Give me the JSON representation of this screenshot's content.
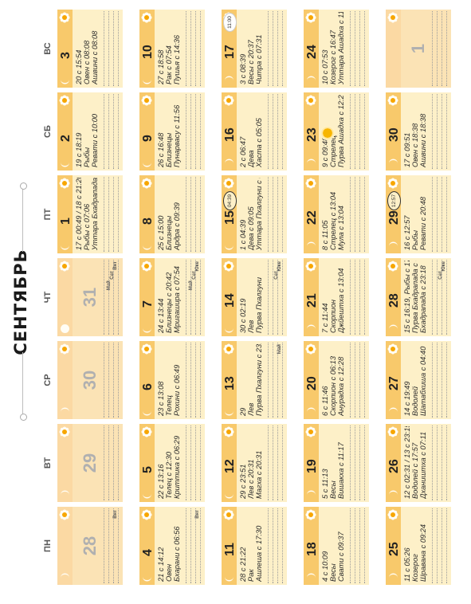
{
  "title": "СЕНТЯБРЬ",
  "weekdays": [
    "ПН",
    "ВТ",
    "СР",
    "ЧТ",
    "ПТ",
    "СБ",
    "ВС"
  ],
  "colors": {
    "bar": "#f8c96b",
    "cell": "#fdf0c8",
    "dim": "#fbe3b5",
    "sun": "#f7a600"
  },
  "weeks": [
    [
      {
        "day": "28",
        "dim": true,
        "moon": "waning",
        "info": [
          "",
          "",
          ""
        ],
        "badges": [
          "Вят"
        ]
      },
      {
        "day": "29",
        "dim": true,
        "moon": "waning",
        "info": [
          "",
          "",
          ""
        ]
      },
      {
        "day": "30",
        "dim": true,
        "moon": "waning",
        "info": [
          "",
          "",
          ""
        ]
      },
      {
        "day": "31",
        "dim": true,
        "moon": "new",
        "info": [
          "",
          "",
          ""
        ],
        "badges": [
          "Вят",
          "Сат",
          "Май"
        ]
      },
      {
        "day": "1",
        "moon": "waxing",
        "info": [
          "17 с 00:49 / 18 с 21:20",
          "Рыбы с 07:06",
          "Уттара Бхадрапада с 12:25"
        ]
      },
      {
        "day": "2",
        "moon": "waxing",
        "info": [
          "19 с 18:19",
          "Рыбы",
          "Ревати с 10:00"
        ]
      },
      {
        "day": "3",
        "moon": "waxing",
        "info": [
          "20 с 15:54",
          "Овен с 08:08",
          "Ашвини с 08:08"
        ]
      }
    ],
    [
      {
        "day": "4",
        "moon": "waxing",
        "info": [
          "21 с 14:12",
          "Овен",
          "Бхарани с 06:56"
        ],
        "badges": [
          "Вят"
        ]
      },
      {
        "day": "5",
        "moon": "waxing",
        "info": [
          "22 с 13:16",
          "Телец с 12:30",
          "Криттика с 06:29"
        ]
      },
      {
        "day": "6",
        "moon": "waxing",
        "info": [
          "23 с 13:08",
          "Телец",
          "Рохини с 06:49"
        ]
      },
      {
        "day": "7",
        "moon": "waxing",
        "info": [
          "24 с 13:44",
          "Близнецы с 20:42",
          "Мригашира с 07:54"
        ],
        "badges": [
          "Юке",
          "Сат",
          "Май"
        ]
      },
      {
        "day": "8",
        "moon": "waxing",
        "info": [
          "25 с 15:00",
          "Близнецы",
          "Ардра с 09:39"
        ]
      },
      {
        "day": "9",
        "moon": "waxing",
        "info": [
          "26 с 16:48",
          "Близнецы",
          "Пунарвасу с 11:56"
        ]
      },
      {
        "day": "10",
        "moon": "waxing",
        "info": [
          "27 с 18:58",
          "Рак с 07:54",
          "Пушья с 14:36"
        ]
      }
    ],
    [
      {
        "day": "11",
        "moon": "waxing",
        "info": [
          "28 с 21:22",
          "Рак",
          "Ашлеша с 17:30"
        ]
      },
      {
        "day": "12",
        "moon": "waxing",
        "info": [
          "29 с 23:51",
          "Лев с 20:31",
          "Магха с 20:31"
        ]
      },
      {
        "day": "13",
        "moon": "waxing",
        "info": [
          "29",
          "Лев",
          "Пурва Пхалгуни с 23:30"
        ],
        "badges": [
          "Май"
        ]
      },
      {
        "day": "14",
        "moon": "waxing",
        "info": [
          "30 с 02:19",
          "Лев",
          "Пурва Пхалгуни"
        ],
        "badges": [
          "Юке",
          "Сат"
        ]
      },
      {
        "day": "15",
        "moon": "waxing",
        "info": [
          "1 с 04:39",
          "Дева с 09:05",
          "Уттара Пхалгуни с 02:23"
        ],
        "ring": "04:39"
      },
      {
        "day": "16",
        "moon": "waning",
        "info": [
          "2 с 06:47",
          "Дева",
          "Хаста с 05:05"
        ]
      },
      {
        "day": "17",
        "moon": "waning",
        "info": [
          "3 с 08:39",
          "Весы с 20:37",
          "Читра с 07:31"
        ],
        "ring": "11:00",
        "highlight": true
      }
    ],
    [
      {
        "day": "18",
        "moon": "waning",
        "info": [
          "4 с 10:09",
          "Весы",
          "Свати с 09:37"
        ]
      },
      {
        "day": "19",
        "moon": "waning",
        "info": [
          "5 с 11:13",
          "Весы",
          "Вишакха с 11:17"
        ]
      },
      {
        "day": "20",
        "moon": "waning",
        "info": [
          "6 с 11:46",
          "Скорпион с 06:13",
          "Анурадха с 12:28"
        ]
      },
      {
        "day": "21",
        "moon": "waning",
        "info": [
          "7 с 11:44",
          "Скорпион",
          "Джйештха с 13:04"
        ]
      },
      {
        "day": "22",
        "moon": "waning",
        "info": [
          "8 с 11:05",
          "Стрелец с 13:04",
          "Мула с 13:04"
        ]
      },
      {
        "day": "23",
        "moon": "waning",
        "info": [
          "9 с 09:48",
          "Стрелец",
          "Пурва Ашадха с 12:26"
        ],
        "eclipse": true
      },
      {
        "day": "24",
        "moon": "waning",
        "info": [
          "10 с 07:53",
          "Козерог с 16:47",
          "Уттара Ашадха с 11:11"
        ]
      }
    ],
    [
      {
        "day": "25",
        "moon": "waning",
        "info": [
          "11 с 05:26",
          "Козерог",
          "Шравана с 09:24"
        ]
      },
      {
        "day": "26",
        "moon": "waning",
        "info": [
          "12 с 02:31 / 13 с 23:15",
          "Водолей с 17:57",
          "Дхаништха с 07:11"
        ]
      },
      {
        "day": "27",
        "moon": "waning",
        "info": [
          "14 с 19:49",
          "Водолей",
          "Шатабхиша с 04:40"
        ]
      },
      {
        "day": "28",
        "moon": "waning",
        "info": [
          "15 с 16:19, Рыбы с 17:57",
          "Пурва Бхадрапада с 01:59 / Уттара",
          "Бхадрапада с 23:18"
        ],
        "badges": [
          "Юке",
          "Сат"
        ]
      },
      {
        "day": "29",
        "moon": "waning",
        "info": [
          "16 с 12:57",
          "Рыбы",
          "Ревати с 20:48"
        ],
        "ring": "12:57"
      },
      {
        "day": "30",
        "moon": "waning",
        "info": [
          "17 с 09:51",
          "Овен с 18:38",
          "Ашвини с 18:38"
        ]
      },
      {
        "day": "1",
        "dim": true,
        "moon": "none",
        "info": [
          "",
          "",
          ""
        ]
      }
    ]
  ]
}
